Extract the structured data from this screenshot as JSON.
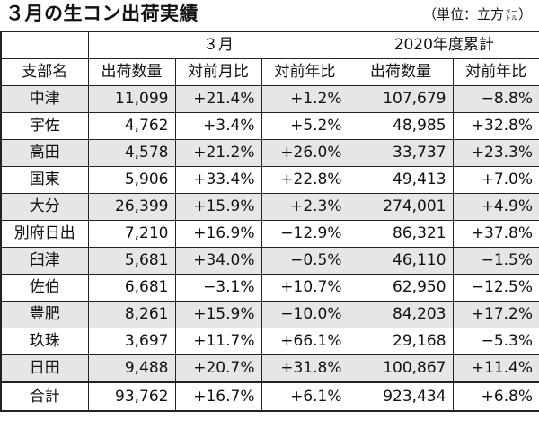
{
  "title": "３月の生コン出荷実績",
  "unit": {
    "prefix": "（単位：立方",
    "kana_top": "メー",
    "kana_bottom": "トル",
    "suffix": "）"
  },
  "header": {
    "group_month": "３月",
    "group_cumulative": "2020年度累計",
    "columns": [
      "支部名",
      "出荷数量",
      "対前月比",
      "対前年比",
      "出荷数量",
      "対前年比"
    ]
  },
  "rows": [
    {
      "name": "中津",
      "qty": "11,099",
      "mom": "+21.4%",
      "yoy": "+1.2%",
      "cum_qty": "107,679",
      "cum_yoy": "−8.8%"
    },
    {
      "name": "宇佐",
      "qty": "4,762",
      "mom": "+3.4%",
      "yoy": "+5.2%",
      "cum_qty": "48,985",
      "cum_yoy": "+32.8%"
    },
    {
      "name": "高田",
      "qty": "4,578",
      "mom": "+21.2%",
      "yoy": "+26.0%",
      "cum_qty": "33,737",
      "cum_yoy": "+23.3%"
    },
    {
      "name": "国東",
      "qty": "5,906",
      "mom": "+33.4%",
      "yoy": "+22.8%",
      "cum_qty": "49,413",
      "cum_yoy": "+7.0%"
    },
    {
      "name": "大分",
      "qty": "26,399",
      "mom": "+15.9%",
      "yoy": "+2.3%",
      "cum_qty": "274,001",
      "cum_yoy": "+4.9%"
    },
    {
      "name": "別府日出",
      "qty": "7,210",
      "mom": "+16.9%",
      "yoy": "−12.9%",
      "cum_qty": "86,321",
      "cum_yoy": "+37.8%"
    },
    {
      "name": "臼津",
      "qty": "5,681",
      "mom": "+34.0%",
      "yoy": "−0.5%",
      "cum_qty": "46,110",
      "cum_yoy": "−1.5%"
    },
    {
      "name": "佐伯",
      "qty": "6,681",
      "mom": "−3.1%",
      "yoy": "+10.7%",
      "cum_qty": "62,950",
      "cum_yoy": "−12.5%"
    },
    {
      "name": "豊肥",
      "qty": "8,261",
      "mom": "+15.9%",
      "yoy": "−10.0%",
      "cum_qty": "84,203",
      "cum_yoy": "+17.2%"
    },
    {
      "name": "玖珠",
      "qty": "3,697",
      "mom": "+11.7%",
      "yoy": "+66.1%",
      "cum_qty": "29,168",
      "cum_yoy": "−5.3%"
    },
    {
      "name": "日田",
      "qty": "9,488",
      "mom": "+20.7%",
      "yoy": "+31.8%",
      "cum_qty": "100,867",
      "cum_yoy": "+11.4%"
    }
  ],
  "total": {
    "name": "合計",
    "qty": "93,762",
    "mom": "+16.7%",
    "yoy": "+6.1%",
    "cum_qty": "923,434",
    "cum_yoy": "+6.8%"
  }
}
